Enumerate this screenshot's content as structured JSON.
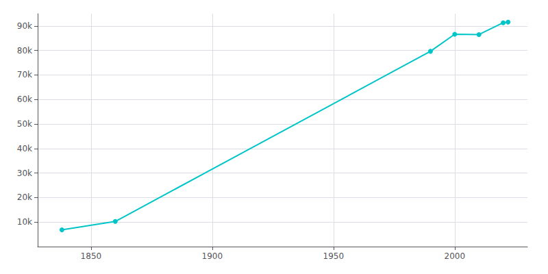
{
  "chart_data": {
    "type": "line",
    "x": [
      1838,
      1860,
      1990,
      2000,
      2010,
      2020,
      2022
    ],
    "values": [
      6820,
      10262,
      79662,
      86605,
      86494,
      91322,
      91578
    ],
    "color": "#00C5C8",
    "marker": "circle",
    "xlim": [
      1828,
      2030
    ],
    "xticks": [
      1850,
      1900,
      1950,
      2000
    ],
    "ylim": [
      0,
      95000
    ],
    "yticks": [
      {
        "value": 10000,
        "label": "10k"
      },
      {
        "value": 20000,
        "label": "20k"
      },
      {
        "value": 30000,
        "label": "30k"
      },
      {
        "value": 40000,
        "label": "40k"
      },
      {
        "value": 50000,
        "label": "50k"
      },
      {
        "value": 60000,
        "label": "60k"
      },
      {
        "value": 70000,
        "label": "70k"
      },
      {
        "value": 80000,
        "label": "80k"
      },
      {
        "value": 90000,
        "label": "90k"
      }
    ],
    "grid": true
  }
}
